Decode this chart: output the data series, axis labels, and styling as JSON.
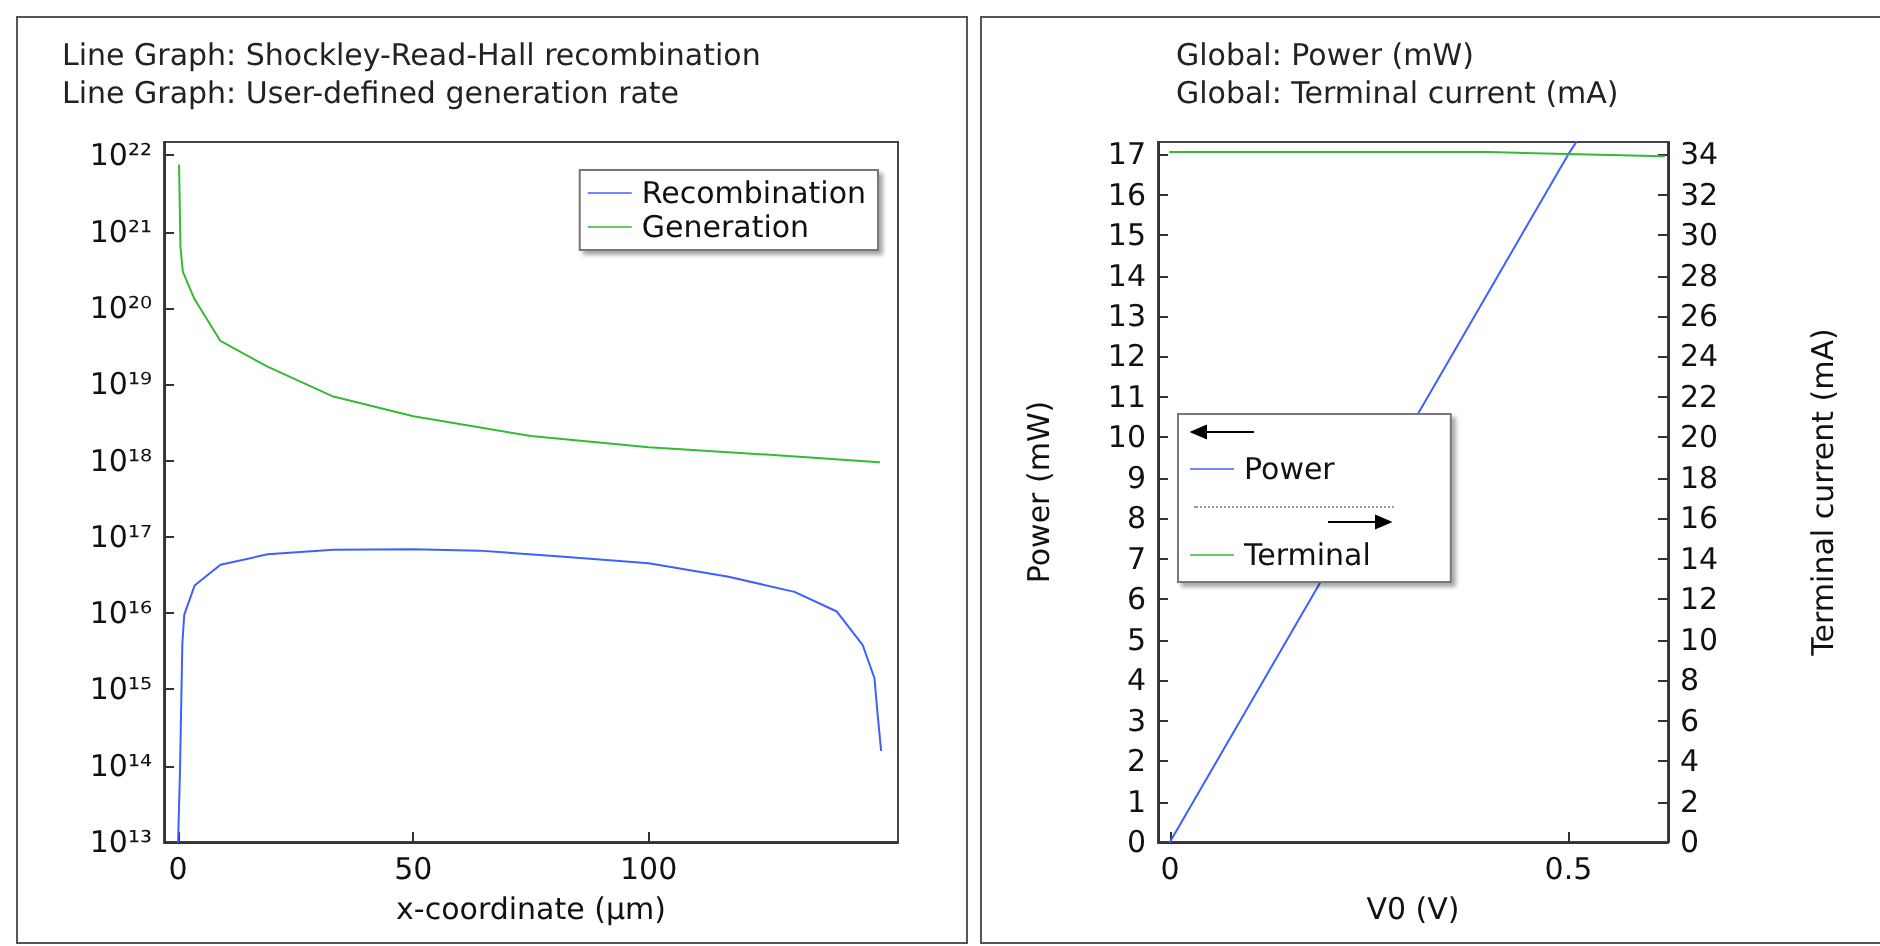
{
  "chart_data": [
    {
      "type": "line",
      "title": "Line Graph: Shockley-Read-Hall recombination",
      "subtitle": "Line Graph: User-defined generation rate",
      "xlabel": "x-coordinate (µm)",
      "xlim": [
        -3,
        153
      ],
      "xticks": [
        0,
        50,
        100
      ],
      "ylim": [
        10000000000000.0,
        1.5e+22
      ],
      "yticks": [
        {
          "value": 10000000000000.0,
          "label": "10¹³"
        },
        {
          "value": 100000000000000.0,
          "label": "10¹⁴"
        },
        {
          "value": 1000000000000000.0,
          "label": "10¹⁵"
        },
        {
          "value": 1e+16,
          "label": "10¹⁶"
        },
        {
          "value": 1e+17,
          "label": "10¹⁷"
        },
        {
          "value": 1e+18,
          "label": "10¹⁸"
        },
        {
          "value": 1e+19,
          "label": "10¹⁹"
        },
        {
          "value": 1e+20,
          "label": "10²⁰"
        },
        {
          "value": 1e+21,
          "label": "10²¹"
        },
        {
          "value": 1e+22,
          "label": "10²²"
        }
      ],
      "log": "y",
      "grid": false,
      "legend": "top right",
      "marker": "none",
      "line_style": "solid",
      "series": [
        {
          "name": "Recombination",
          "color": "#3f5fff",
          "x": [
            0,
            0.4,
            0.9,
            1.3,
            3.5,
            9,
            19,
            33,
            50,
            64,
            82,
            100,
            117,
            131,
            140,
            145.5,
            148,
            148.6,
            149.4
          ],
          "values": [
            10000000000000.0,
            87000000000000.0,
            4000000000000000.0,
            9500000000000000.0,
            2.3e+16,
            4.3e+16,
            5.9e+16,
            6.8e+16,
            6.9e+16,
            6.6e+16,
            5.5e+16,
            4.5e+16,
            3e+16,
            1.9e+16,
            1.05e+16,
            3800000000000000.0,
            1400000000000000.0,
            520000000000000.0,
            160000000000000.0
          ]
        },
        {
          "name": "Generation",
          "color": "#33bb33",
          "x": [
            0.2,
            0.5,
            1,
            3.5,
            9,
            19,
            33,
            50,
            75,
            100,
            125,
            149
          ],
          "values": [
            7.4e+21,
            6.3e+20,
            3e+20,
            1.3e+20,
            3.7e+19,
            1.7e+19,
            6.9e+18,
            3.8e+18,
            2.1e+18,
            1.5e+18,
            1.2e+18,
            9.5e+17
          ]
        }
      ]
    },
    {
      "type": "line",
      "title": "Global: Power (mW)",
      "subtitle": "Global: Terminal current (mA)",
      "xlabel": "V0 (V)",
      "ylabel": "Power (mW)",
      "y2label": "Terminal current (mA)",
      "xlim": [
        -0.015,
        0.625
      ],
      "xticks": [
        0,
        0.5
      ],
      "ylim": [
        0,
        17.3
      ],
      "yticks": [
        0,
        1,
        2,
        3,
        4,
        5,
        6,
        7,
        8,
        9,
        10,
        11,
        12,
        13,
        14,
        15,
        16,
        17
      ],
      "y2lim": [
        0,
        34.6
      ],
      "y2ticks": [
        0,
        2,
        4,
        6,
        8,
        10,
        12,
        14,
        16,
        18,
        20,
        22,
        24,
        26,
        28,
        30,
        32,
        34
      ],
      "grid": false,
      "legend": "left",
      "marker": "none",
      "line_style": "solid",
      "series": [
        {
          "name": "Power",
          "color": "#3f5fff",
          "x": [
            0,
            0.5,
            0.51
          ],
          "values": [
            0,
            17,
            17.3
          ]
        },
        {
          "name": "Terminal",
          "color": "#33bb33",
          "axis": "y2",
          "x": [
            0,
            0.4,
            0.62
          ],
          "values": [
            34.1,
            34.1,
            33.9
          ]
        }
      ]
    }
  ]
}
